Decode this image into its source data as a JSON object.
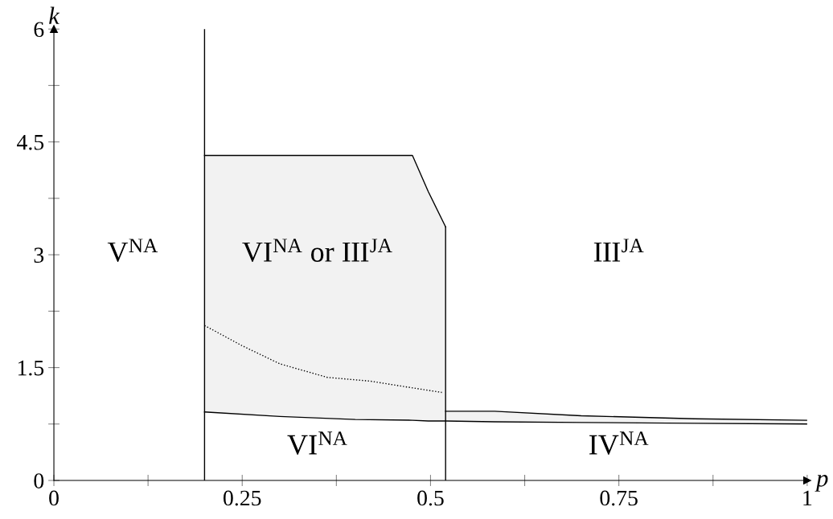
{
  "chart_data": {
    "type": "line",
    "xlabel": "p",
    "ylabel": "k",
    "xlim": [
      0,
      1
    ],
    "ylim": [
      0,
      6
    ],
    "xticks": [
      0,
      {
        "value": 0.125,
        "label": null
      },
      0.25,
      {
        "value": 0.375,
        "label": null
      },
      0.5,
      {
        "value": 0.625,
        "label": null
      },
      0.75,
      {
        "value": 0.875,
        "label": null
      },
      1
    ],
    "yticks": [
      0,
      {
        "value": 0.75,
        "label": null
      },
      1.5,
      {
        "value": 2.25,
        "label": null
      },
      3,
      {
        "value": 3.75,
        "label": null
      },
      4.5,
      {
        "value": 5.25,
        "label": null
      },
      6
    ],
    "grid": false,
    "legend": false,
    "series": [
      {
        "color": "#000000",
        "line_style": "solid",
        "x": [
          0.2,
          0.3,
          0.4,
          0.476,
          0.497,
          0.52,
          0.52,
          0.585,
          0.7,
          0.85,
          1.0
        ],
        "values": [
          0.91,
          0.85,
          0.81,
          0.8,
          0.79,
          0.79,
          0.79,
          0.78,
          0.77,
          0.76,
          0.75
        ],
        "lower": [
          0.91,
          0.85,
          0.81,
          0.8,
          0.79,
          0.79,
          0.79,
          0.78,
          0.77,
          0.76,
          0.75
        ],
        "upper": [
          4.32,
          4.32,
          4.32,
          4.32,
          3.84,
          3.37,
          0.92,
          0.92,
          0.86,
          0.82,
          0.8
        ]
      },
      {
        "color": "#000000",
        "line_style": "solid",
        "x": [
          0.2,
          0.3,
          0.4,
          0.476,
          0.497,
          0.52
        ],
        "values": [
          4.32,
          4.32,
          4.32,
          4.32,
          3.84,
          3.37
        ]
      },
      {
        "color": "#000000",
        "line_style": "solid",
        "x": [
          0.52,
          0.585,
          0.7,
          0.85,
          1.0
        ],
        "values": [
          0.92,
          0.92,
          0.86,
          0.82,
          0.8
        ]
      },
      {
        "color": "#000000",
        "line_style": "solid",
        "x": [
          0.52,
          0.52
        ],
        "values": [
          0,
          3.37
        ]
      },
      {
        "color": "#000000",
        "line_style": "dotted",
        "x": [
          0.2,
          0.25,
          0.3,
          0.363,
          0.42,
          0.47,
          0.515
        ],
        "values": [
          2.06,
          1.79,
          1.55,
          1.37,
          1.32,
          1.24,
          1.17
        ]
      }
    ],
    "ref_lines": [
      {
        "axis": "x",
        "value": 0.2,
        "color": "#000000",
        "line_style": "solid"
      }
    ],
    "annotations": [
      "V$^{NA}$",
      "VI$^{NA}$ or III$^{JA}$",
      "III$^{JA}$",
      "VI$^{NA}$",
      "IV$^{NA}$"
    ]
  }
}
